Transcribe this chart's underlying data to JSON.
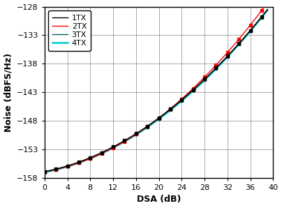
{
  "title": "",
  "xlabel": "DSA (dB)",
  "ylabel": "Noise (dBFS/Hz)",
  "xlim": [
    0,
    40
  ],
  "ylim": [
    -158,
    -128
  ],
  "xticks": [
    0,
    4,
    8,
    12,
    16,
    20,
    24,
    28,
    32,
    36,
    40
  ],
  "yticks": [
    -158,
    -153,
    -148,
    -143,
    -138,
    -133,
    -128
  ],
  "series": {
    "1TX": {
      "color": "#000000",
      "marker": "s",
      "markersize": 2.5,
      "linewidth": 1.0,
      "markevery": 2,
      "x": [
        0,
        1,
        2,
        3,
        4,
        5,
        6,
        7,
        8,
        9,
        10,
        11,
        12,
        13,
        14,
        15,
        16,
        17,
        18,
        19,
        20,
        21,
        22,
        23,
        24,
        25,
        26,
        27,
        28,
        29,
        30,
        31,
        32,
        33,
        34,
        35,
        36,
        37,
        38,
        39,
        40
      ],
      "y": [
        -156.9,
        -156.7,
        -156.4,
        -156.0,
        -155.6,
        -155.3,
        -154.9,
        -154.5,
        -154.1,
        -153.7,
        -153.3,
        -152.9,
        -152.4,
        -151.9,
        -151.3,
        -150.7,
        -150.0,
        -149.3,
        -148.6,
        -147.8,
        -147.0,
        -146.2,
        -145.3,
        -144.4,
        -143.5,
        -142.5,
        -141.5,
        -140.5,
        -139.4,
        -138.3,
        -137.2,
        -136.1,
        -134.9,
        -133.7,
        -132.5,
        -131.2,
        -129.9,
        -128.7,
        -130.0,
        -131.0,
        -129.3
      ]
    },
    "2TX": {
      "color": "#ff0000",
      "marker": "s",
      "markersize": 2.5,
      "linewidth": 1.0,
      "markevery": 2,
      "x": [
        0,
        1,
        2,
        3,
        4,
        5,
        6,
        7,
        8,
        9,
        10,
        11,
        12,
        13,
        14,
        15,
        16,
        17,
        18,
        19,
        20,
        21,
        22,
        23,
        24,
        25,
        26,
        27,
        28,
        29,
        30,
        31,
        32,
        33,
        34,
        35,
        36,
        37,
        38,
        39,
        40
      ],
      "y": [
        -156.9,
        -156.7,
        -156.3,
        -155.9,
        -155.5,
        -155.1,
        -154.7,
        -154.3,
        -153.9,
        -153.5,
        -153.1,
        -152.7,
        -152.2,
        -151.7,
        -151.1,
        -150.5,
        -149.8,
        -149.1,
        -148.3,
        -147.5,
        -146.7,
        -145.8,
        -144.9,
        -144.0,
        -143.0,
        -142.0,
        -141.0,
        -139.9,
        -138.8,
        -137.6,
        -136.4,
        -135.2,
        -133.9,
        -132.6,
        -131.3,
        -129.9,
        -128.5,
        -128.0,
        -129.0,
        -130.2,
        -127.5
      ]
    },
    "3TX": {
      "color": "#005f6b",
      "marker": "s",
      "markersize": 2.5,
      "linewidth": 1.0,
      "markevery": 2,
      "x": [
        0,
        1,
        2,
        3,
        4,
        5,
        6,
        7,
        8,
        9,
        10,
        11,
        12,
        13,
        14,
        15,
        16,
        17,
        18,
        19,
        20,
        21,
        22,
        23,
        24,
        25,
        26,
        27,
        28,
        29,
        30,
        31,
        32,
        33,
        34,
        35,
        36,
        37,
        38,
        39,
        40
      ],
      "y": [
        -157.0,
        -156.8,
        -156.5,
        -156.1,
        -155.7,
        -155.4,
        -155.0,
        -154.6,
        -154.2,
        -153.8,
        -153.4,
        -153.0,
        -152.5,
        -152.0,
        -151.4,
        -150.8,
        -150.1,
        -149.4,
        -148.7,
        -147.9,
        -147.1,
        -146.3,
        -145.4,
        -144.5,
        -143.5,
        -142.5,
        -141.5,
        -140.5,
        -139.4,
        -138.3,
        -137.2,
        -136.1,
        -134.9,
        -133.7,
        -132.5,
        -131.2,
        -129.9,
        -128.7,
        -129.8,
        -130.9,
        -128.6
      ]
    },
    "4TX": {
      "color": "#00cccc",
      "marker": null,
      "markersize": 0,
      "linewidth": 1.8,
      "markevery": 1,
      "x": [
        0,
        1,
        2,
        3,
        4,
        5,
        6,
        7,
        8,
        9,
        10,
        11,
        12,
        13,
        14,
        15,
        16,
        17,
        18,
        19,
        20,
        21,
        22,
        23,
        24,
        25,
        26,
        27,
        28,
        29,
        30,
        31,
        32,
        33,
        34,
        35,
        36,
        37,
        38,
        39,
        40
      ],
      "y": [
        -157.0,
        -156.8,
        -156.5,
        -156.1,
        -155.8,
        -155.4,
        -155.0,
        -154.7,
        -154.3,
        -153.9,
        -153.5,
        -153.1,
        -152.6,
        -152.1,
        -151.5,
        -150.9,
        -150.2,
        -149.5,
        -148.8,
        -148.0,
        -147.2,
        -146.4,
        -145.5,
        -144.6,
        -143.6,
        -142.6,
        -141.6,
        -140.6,
        -139.5,
        -138.4,
        -137.3,
        -136.2,
        -135.0,
        -133.8,
        -132.6,
        -131.3,
        -130.0,
        -128.8,
        -129.5,
        -130.6,
        -128.5
      ]
    }
  },
  "legend_loc": "upper left",
  "grid_color": "#888888",
  "bg_color": "#ffffff",
  "fontsize_axis_label": 9,
  "fontsize_tick": 8,
  "fontsize_legend": 8
}
